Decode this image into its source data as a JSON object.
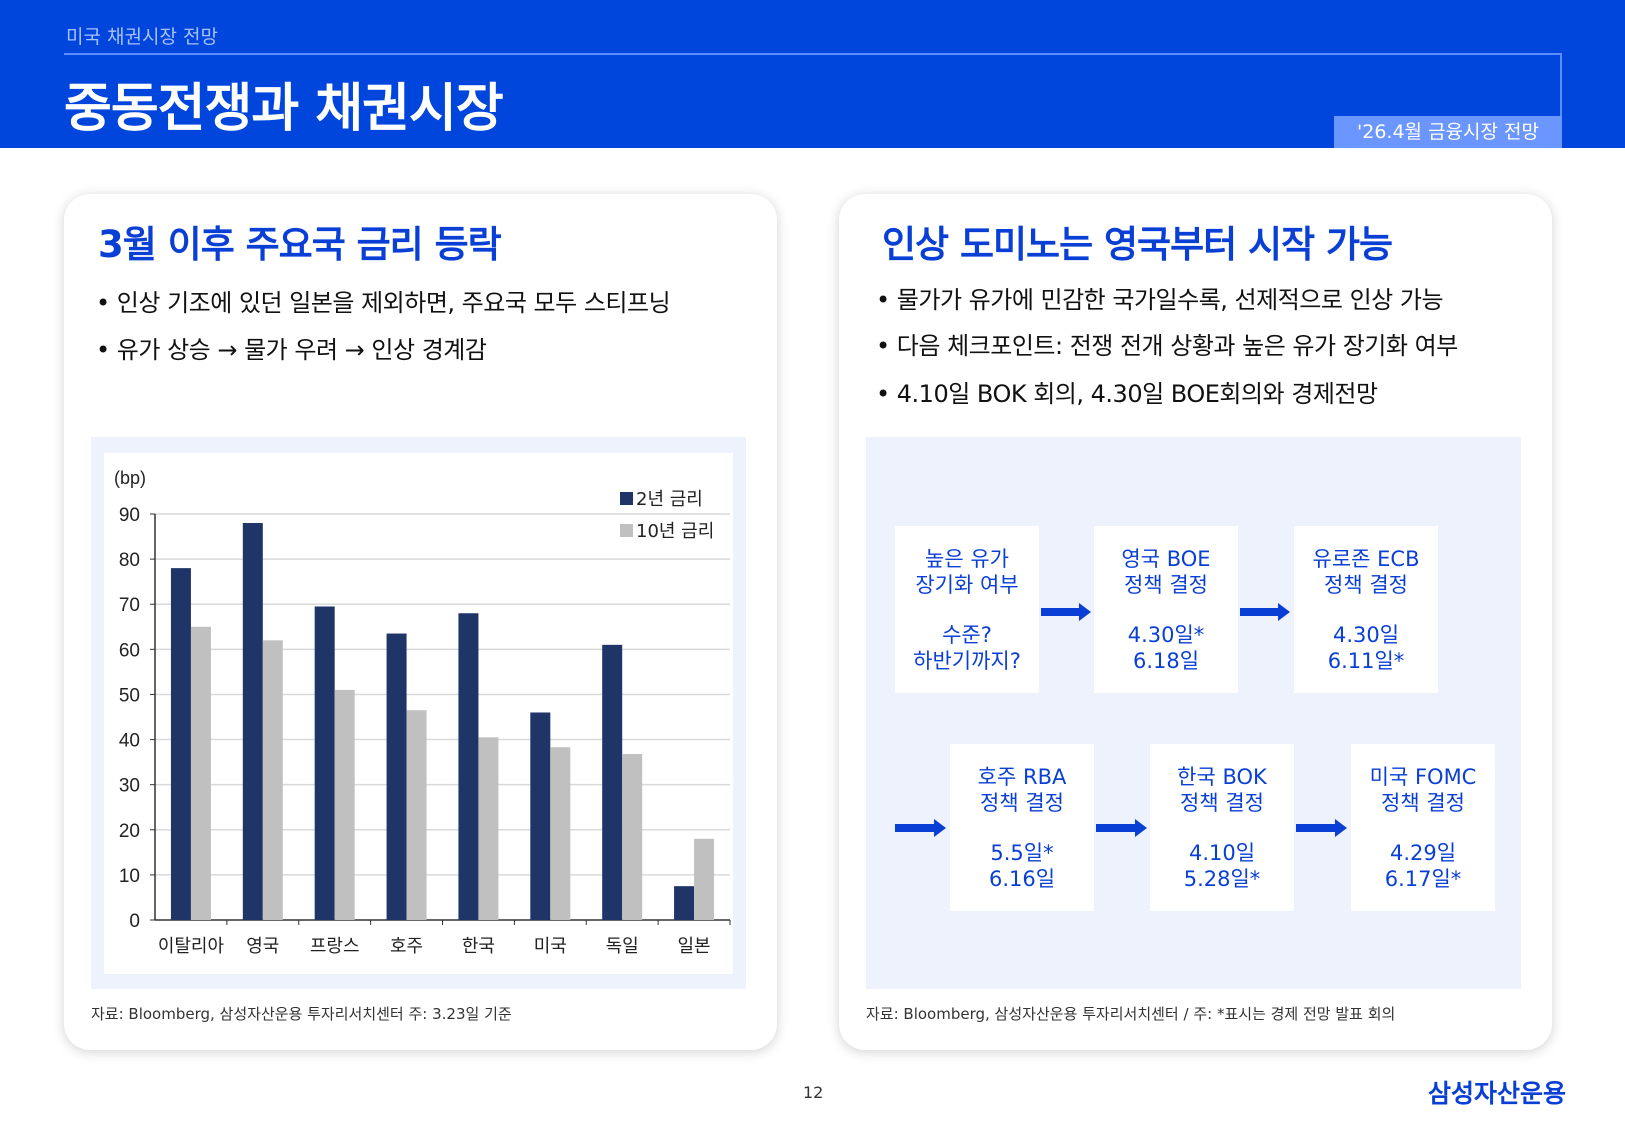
{
  "header": {
    "subtitle": "미국 채권시장 전망",
    "title": "중동전쟁과 채권시장",
    "badge": "'26.4월 금융시장 전망"
  },
  "left": {
    "title": "3월 이후 주요국 금리 등락",
    "bullets": [
      "• 인상 기조에 있던 일본을 제외하면, 주요국 모두 스티프닝",
      "• 유가 상승 → 물가 우려 → 인상 경계감"
    ],
    "source": "자료: Bloomberg,  삼성자산운용 투자리서치센터 주: 3.23일 기준"
  },
  "chart_data": {
    "type": "bar",
    "unit_label": "(bp)",
    "categories": [
      "이탈리아",
      "영국",
      "프랑스",
      "호주",
      "한국",
      "미국",
      "독일",
      "일본"
    ],
    "series": [
      {
        "name": "2년 금리",
        "color": "#1f3568",
        "values": [
          78,
          88,
          69.5,
          63.5,
          68,
          46,
          61,
          7.5
        ]
      },
      {
        "name": "10년 금리",
        "color": "#c0c0c0",
        "values": [
          65,
          62,
          51,
          46.5,
          40.5,
          38.3,
          36.8,
          18
        ]
      }
    ],
    "ylim": [
      0,
      90
    ],
    "yticks": [
      0,
      10,
      20,
      30,
      40,
      50,
      60,
      70,
      80,
      90
    ],
    "grid": true,
    "legend": "top-right"
  },
  "right": {
    "title": "인상 도미노는 영국부터 시작 가능",
    "bullets": [
      "• 물가가 유가에 민감한 국가일수록, 선제적으로 인상 가능",
      "• 다음 체크포인트: 전쟁 전개 상황과 높은 유가 장기화 여부",
      "• 4.10일 BOK 회의, 4.30일 BOE회의와 경제전망"
    ],
    "flow": [
      {
        "l1": "높은 유가",
        "l2": "장기화 여부",
        "d1": "수준?",
        "d2": "하반기까지?"
      },
      {
        "l1": "영국 BOE",
        "l2": "정책 결정",
        "d1": "4.30일*",
        "d2": "6.18일"
      },
      {
        "l1": "유로존 ECB",
        "l2": "정책 결정",
        "d1": "4.30일",
        "d2": "6.11일*"
      },
      {
        "l1": "호주 RBA",
        "l2": "정책 결정",
        "d1": "5.5일*",
        "d2": "6.16일"
      },
      {
        "l1": "한국 BOK",
        "l2": "정책 결정",
        "d1": "4.10일",
        "d2": "5.28일*"
      },
      {
        "l1": "미국 FOMC",
        "l2": "정책 결정",
        "d1": "4.29일",
        "d2": "6.17일*"
      }
    ],
    "source": "자료: Bloomberg,  삼성자산운용 투자리서치센터 / 주: *표시는 경제 전망 발표 회의"
  },
  "footer": {
    "page": "12",
    "logo": "삼성자산운용"
  },
  "colors": {
    "brand": "#0046dc",
    "accent": "#0a3fd6",
    "badge": "#6b96ff",
    "panel": "#eef2fc"
  }
}
